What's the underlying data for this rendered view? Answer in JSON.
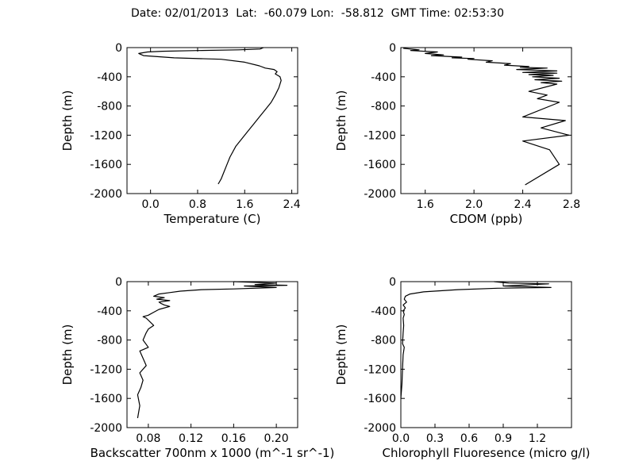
{
  "title": "Date: 02/01/2013  Lat:  -60.079 Lon:  -58.812  GMT Time: 02:53:30",
  "chart_data": [
    {
      "type": "line",
      "xlabel": "Temperature (C)",
      "ylabel": "Depth (m)",
      "xlim": [
        -0.4,
        2.5
      ],
      "ylim": [
        -2000,
        0
      ],
      "xticks": [
        "0.0",
        "0.8",
        "1.6",
        "2.4"
      ],
      "yticks": [
        "0",
        "-400",
        "-800",
        "-1200",
        "-1600",
        "-2000"
      ],
      "grid": false,
      "series": [
        {
          "x": [
            1.92,
            1.86,
            1.5,
            0.8,
            0.2,
            -0.05,
            -0.2,
            -0.12,
            0.4,
            1.2,
            1.6,
            1.85,
            1.95,
            2.1,
            2.15,
            2.12,
            2.2,
            2.22,
            2.18,
            2.12,
            2.05,
            1.95,
            1.85,
            1.75,
            1.65,
            1.55,
            1.45,
            1.35,
            1.3,
            1.25,
            1.2,
            1.15
          ],
          "y": [
            0,
            -20,
            -30,
            -40,
            -50,
            -60,
            -80,
            -110,
            -140,
            -160,
            -200,
            -250,
            -280,
            -300,
            -330,
            -360,
            -400,
            -450,
            -550,
            -650,
            -750,
            -850,
            -950,
            -1050,
            -1150,
            -1250,
            -1350,
            -1500,
            -1600,
            -1700,
            -1800,
            -1870
          ]
        }
      ]
    },
    {
      "type": "line",
      "xlabel": "CDOM (ppb)",
      "ylabel": "Depth (m)",
      "xlim": [
        1.4,
        2.8
      ],
      "ylim": [
        -2000,
        0
      ],
      "xticks": [
        "1.6",
        "2.0",
        "2.4",
        "2.8"
      ],
      "yticks": [
        "0",
        "-400",
        "-800",
        "-1200",
        "-1600",
        "-2000"
      ],
      "grid": false,
      "series": [
        {
          "x": [
            1.42,
            1.55,
            1.48,
            1.7,
            1.6,
            1.75,
            1.65,
            1.9,
            1.82,
            2.0,
            1.95,
            2.15,
            2.1,
            2.3,
            2.25,
            2.45,
            2.38,
            2.6,
            2.35,
            2.68,
            2.4,
            2.68,
            2.45,
            2.65,
            2.48,
            2.7,
            2.5,
            2.72,
            2.55,
            2.68,
            2.45,
            2.6,
            2.52,
            2.7,
            2.4,
            2.75,
            2.55,
            2.78,
            2.4,
            2.62,
            2.7,
            2.42
          ],
          "y": [
            -10,
            -30,
            -40,
            -60,
            -80,
            -100,
            -110,
            -130,
            -140,
            -150,
            -160,
            -180,
            -200,
            -220,
            -240,
            -260,
            -270,
            -280,
            -300,
            -320,
            -340,
            -350,
            -370,
            -380,
            -400,
            -420,
            -440,
            -460,
            -480,
            -500,
            -600,
            -650,
            -700,
            -750,
            -950,
            -1000,
            -1100,
            -1200,
            -1280,
            -1400,
            -1600,
            -1880
          ]
        }
      ]
    },
    {
      "type": "line",
      "xlabel": "Backscatter 700nm x 1000 (m^-1 sr^-1)",
      "ylabel": "Depth (m)",
      "xlim": [
        0.06,
        0.22
      ],
      "ylim": [
        -2000,
        0
      ],
      "xticks": [
        "0.08",
        "0.12",
        "0.16",
        "0.20"
      ],
      "yticks": [
        "0",
        "-400",
        "-800",
        "-1200",
        "-1600",
        "-2000"
      ],
      "grid": false,
      "series": [
        {
          "x": [
            0.16,
            0.2,
            0.18,
            0.21,
            0.17,
            0.2,
            0.16,
            0.13,
            0.11,
            0.1,
            0.09,
            0.085,
            0.095,
            0.088,
            0.1,
            0.09,
            0.092,
            0.095,
            0.1,
            0.09,
            0.085,
            0.08,
            0.075,
            0.078,
            0.085,
            0.08,
            0.078,
            0.075,
            0.08,
            0.072,
            0.075,
            0.078,
            0.072,
            0.075,
            0.073,
            0.07,
            0.072,
            0.07
          ],
          "y": [
            0,
            -20,
            -40,
            -50,
            -60,
            -80,
            -100,
            -110,
            -130,
            -150,
            -170,
            -200,
            -220,
            -240,
            -260,
            -280,
            -300,
            -320,
            -340,
            -380,
            -420,
            -460,
            -480,
            -500,
            -600,
            -650,
            -700,
            -800,
            -900,
            -950,
            -1050,
            -1150,
            -1250,
            -1350,
            -1450,
            -1550,
            -1700,
            -1870
          ]
        }
      ]
    },
    {
      "type": "line",
      "xlabel": "Chlorophyll Fluoresence (micro g/l)",
      "ylabel": "Depth (m)",
      "xlim": [
        0.0,
        1.5
      ],
      "ylim": [
        -2000,
        0
      ],
      "xticks": [
        "0.0",
        "0.3",
        "0.6",
        "0.9",
        "1.2"
      ],
      "yticks": [
        "0",
        "-400",
        "-800",
        "-1200",
        "-1600",
        "-2000"
      ],
      "grid": false,
      "series": [
        {
          "x": [
            0.82,
            0.88,
            0.95,
            1.3,
            0.9,
            1.32,
            0.85,
            0.5,
            0.2,
            0.08,
            0.04,
            0.03,
            0.05,
            0.02,
            0.04,
            0.02,
            0.03,
            0.02,
            0.025,
            0.02,
            0.015,
            0.03,
            0.02,
            0.015,
            0.01,
            0.0
          ],
          "y": [
            0,
            -10,
            -20,
            -30,
            -60,
            -80,
            -90,
            -110,
            -140,
            -170,
            -200,
            -240,
            -280,
            -320,
            -360,
            -400,
            -450,
            -500,
            -600,
            -700,
            -850,
            -900,
            -1000,
            -1200,
            -1400,
            -1600
          ]
        }
      ]
    }
  ]
}
